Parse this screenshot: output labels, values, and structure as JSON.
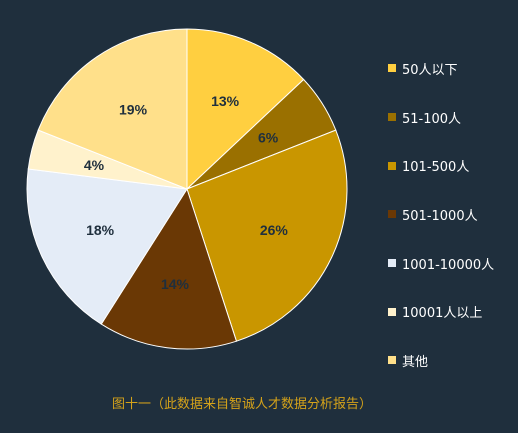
{
  "chart_data": {
    "type": "pie",
    "slices": [
      {
        "label": "50人以下",
        "value": 13,
        "display": "13%",
        "color": "#ffcf40",
        "label_color": "#1f2f3d"
      },
      {
        "label": "51-100人",
        "value": 6,
        "display": "6%",
        "color": "#9a7000",
        "label_color": "#1f2f3d"
      },
      {
        "label": "101-500人",
        "value": 26,
        "display": "26%",
        "color": "#c99600",
        "label_color": "#1f2f3d"
      },
      {
        "label": "501-1000人",
        "value": 14,
        "display": "14%",
        "color": "#6a3805",
        "label_color": "#1f2f3d"
      },
      {
        "label": "1001-10000人",
        "value": 18,
        "display": "18%",
        "color": "#e4ecf7",
        "label_color": "#1f2f3d"
      },
      {
        "label": "10001人以上",
        "value": 4,
        "display": "4%",
        "color": "#fff2cc",
        "label_color": "#1f2f3d"
      },
      {
        "label": "其他",
        "value": 19,
        "display": "19%",
        "color": "#ffe08a",
        "label_color": "#1f2f3d"
      }
    ],
    "legend_position": "right",
    "caption": "图十一（此数据来自智诚人才数据分析报告）"
  }
}
